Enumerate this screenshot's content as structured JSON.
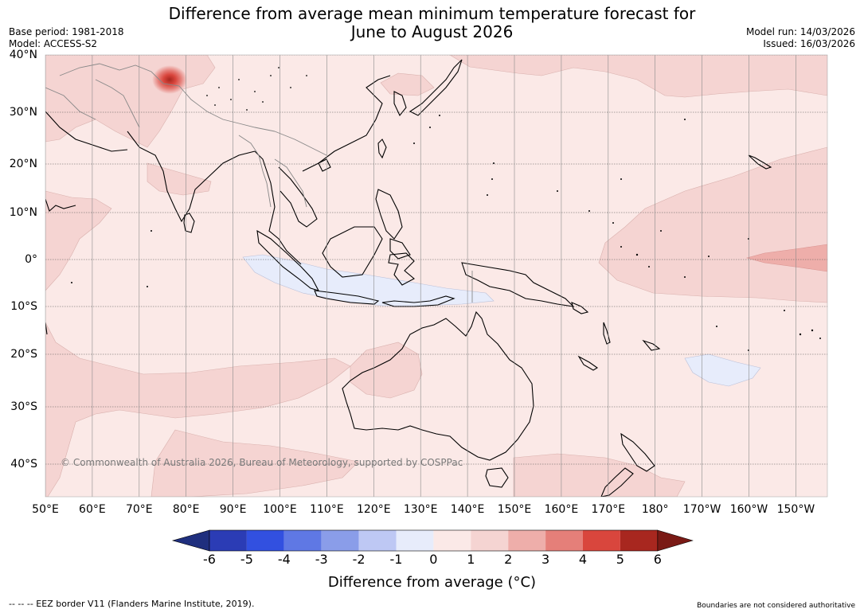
{
  "title": {
    "line1": "Difference from average mean minimum temperature forecast for",
    "line2": "June to August 2026"
  },
  "meta": {
    "base_period": "Base period: 1981-2018",
    "model": "Model: ACCESS-S2",
    "model_run": "Model run: 14/03/2026",
    "issued": "Issued: 16/03/2026"
  },
  "map": {
    "lat_ticks": [
      "40°N",
      "30°N",
      "20°N",
      "10°N",
      "0°",
      "10°S",
      "20°S",
      "30°S",
      "40°S"
    ],
    "lon_ticks": [
      "50°E",
      "60°E",
      "70°E",
      "80°E",
      "90°E",
      "100°E",
      "110°E",
      "120°E",
      "130°E",
      "140°E",
      "150°E",
      "160°E",
      "170°E",
      "180°",
      "170°W",
      "160°W",
      "150°W"
    ],
    "copyright": "© Commonwealth of Australia 2026, Bureau of Meteorology, supported by COSPPac",
    "background_color": "#fbe9e7"
  },
  "colorbar": {
    "ticks": [
      "-6",
      "-5",
      "-4",
      "-3",
      "-2",
      "-1",
      "0",
      "1",
      "2",
      "3",
      "4",
      "5",
      "6"
    ],
    "colors": [
      "#1f2f7e",
      "#2b3cb5",
      "#3250e0",
      "#5f78e4",
      "#8a9de9",
      "#bec8f4",
      "#e7ecfb",
      "#fbe9e7",
      "#f5d4d2",
      "#eeaeaa",
      "#e57f79",
      "#d9463d",
      "#a8271f",
      "#7a1a15"
    ],
    "label": "Difference from average (°C)"
  },
  "footer": {
    "eez": "--  --  -- EEZ border V11 (Flanders Marine Institute, 2019).",
    "disclaimer": "Boundaries are not considered authoritative"
  }
}
